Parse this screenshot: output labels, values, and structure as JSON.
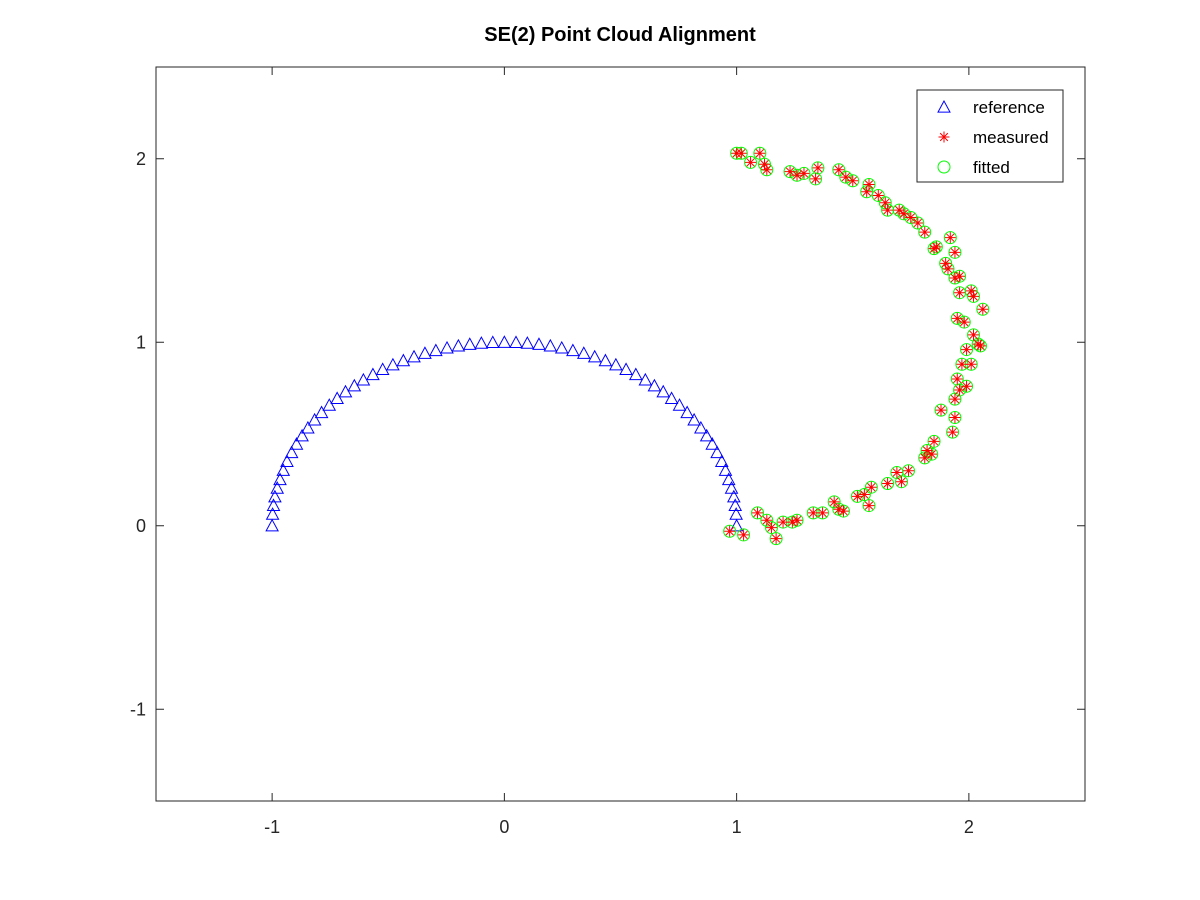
{
  "chart_data": {
    "type": "scatter",
    "title": "SE(2) Point Cloud Alignment",
    "xlabel": "",
    "ylabel": "",
    "xlim": [
      -1.5,
      2.5
    ],
    "ylim": [
      -1.5,
      2.5
    ],
    "xticks": [
      -1,
      0,
      1,
      2
    ],
    "yticks": [
      -1,
      0,
      1,
      2
    ],
    "xtick_labels": [
      "-1",
      "0",
      "1",
      "2"
    ],
    "ytick_labels": [
      "-1",
      "0",
      "1",
      "2"
    ],
    "grid": false,
    "legend_position": "top-right",
    "legend": [
      "reference",
      "measured",
      "fitted"
    ],
    "series": [
      {
        "name": "reference",
        "marker": "triangle",
        "color": "#0000ff",
        "points": [
          [
            -1.0,
            0.0
          ],
          [
            -0.998,
            0.063
          ],
          [
            -0.994,
            0.111
          ],
          [
            -0.988,
            0.158
          ],
          [
            -0.978,
            0.205
          ],
          [
            -0.966,
            0.252
          ],
          [
            -0.952,
            0.302
          ],
          [
            -0.936,
            0.351
          ],
          [
            -0.916,
            0.399
          ],
          [
            -0.895,
            0.445
          ],
          [
            -0.871,
            0.49
          ],
          [
            -0.846,
            0.533
          ],
          [
            -0.817,
            0.577
          ],
          [
            -0.787,
            0.617
          ],
          [
            -0.754,
            0.657
          ],
          [
            -0.72,
            0.694
          ],
          [
            -0.684,
            0.73
          ],
          [
            -0.646,
            0.763
          ],
          [
            -0.607,
            0.795
          ],
          [
            -0.566,
            0.824
          ],
          [
            -0.524,
            0.852
          ],
          [
            -0.48,
            0.877
          ],
          [
            -0.435,
            0.9
          ],
          [
            -0.389,
            0.921
          ],
          [
            -0.342,
            0.94
          ],
          [
            -0.295,
            0.955
          ],
          [
            -0.247,
            0.969
          ],
          [
            -0.198,
            0.98
          ],
          [
            -0.149,
            0.989
          ],
          [
            -0.099,
            0.995
          ],
          [
            -0.05,
            0.999
          ],
          [
            0.0,
            1.0
          ],
          [
            0.05,
            0.999
          ],
          [
            0.099,
            0.995
          ],
          [
            0.149,
            0.989
          ],
          [
            0.198,
            0.98
          ],
          [
            0.247,
            0.969
          ],
          [
            0.295,
            0.955
          ],
          [
            0.342,
            0.94
          ],
          [
            0.389,
            0.921
          ],
          [
            0.435,
            0.9
          ],
          [
            0.48,
            0.877
          ],
          [
            0.524,
            0.852
          ],
          [
            0.566,
            0.824
          ],
          [
            0.607,
            0.795
          ],
          [
            0.646,
            0.763
          ],
          [
            0.684,
            0.73
          ],
          [
            0.72,
            0.694
          ],
          [
            0.754,
            0.657
          ],
          [
            0.787,
            0.617
          ],
          [
            0.817,
            0.577
          ],
          [
            0.846,
            0.533
          ],
          [
            0.871,
            0.49
          ],
          [
            0.895,
            0.445
          ],
          [
            0.916,
            0.399
          ],
          [
            0.936,
            0.351
          ],
          [
            0.952,
            0.302
          ],
          [
            0.966,
            0.252
          ],
          [
            0.978,
            0.205
          ],
          [
            0.988,
            0.158
          ],
          [
            0.994,
            0.111
          ],
          [
            0.998,
            0.063
          ],
          [
            1.0,
            0.0
          ]
        ]
      },
      {
        "name": "measured",
        "marker": "asterisk",
        "color": "#ff0000",
        "points": [
          [
            0.97,
            -0.03
          ],
          [
            1.03,
            -0.05
          ],
          [
            1.09,
            0.07
          ],
          [
            1.13,
            0.03
          ],
          [
            1.15,
            -0.01
          ],
          [
            1.17,
            -0.07
          ],
          [
            1.2,
            0.02
          ],
          [
            1.24,
            0.02
          ],
          [
            1.26,
            0.03
          ],
          [
            1.33,
            0.07
          ],
          [
            1.37,
            0.07
          ],
          [
            1.42,
            0.13
          ],
          [
            1.44,
            0.09
          ],
          [
            1.46,
            0.08
          ],
          [
            1.52,
            0.16
          ],
          [
            1.55,
            0.17
          ],
          [
            1.57,
            0.11
          ],
          [
            1.58,
            0.21
          ],
          [
            1.65,
            0.23
          ],
          [
            1.69,
            0.29
          ],
          [
            1.71,
            0.24
          ],
          [
            1.74,
            0.3
          ],
          [
            1.81,
            0.37
          ],
          [
            1.82,
            0.41
          ],
          [
            1.84,
            0.39
          ],
          [
            1.85,
            0.46
          ],
          [
            1.88,
            0.63
          ],
          [
            1.93,
            0.51
          ],
          [
            1.94,
            0.59
          ],
          [
            1.94,
            0.69
          ],
          [
            1.95,
            0.8
          ],
          [
            1.96,
            0.74
          ],
          [
            1.97,
            0.88
          ],
          [
            1.99,
            0.76
          ],
          [
            1.99,
            0.96
          ],
          [
            2.01,
            0.88
          ],
          [
            2.02,
            1.04
          ],
          [
            2.05,
            0.98
          ],
          [
            2.04,
            0.99
          ],
          [
            1.95,
            1.13
          ],
          [
            1.98,
            1.11
          ],
          [
            2.06,
            1.18
          ],
          [
            1.96,
            1.27
          ],
          [
            2.01,
            1.28
          ],
          [
            2.02,
            1.25
          ],
          [
            1.94,
            1.35
          ],
          [
            1.96,
            1.36
          ],
          [
            1.91,
            1.4
          ],
          [
            1.94,
            1.49
          ],
          [
            1.9,
            1.43
          ],
          [
            1.92,
            1.57
          ],
          [
            1.85,
            1.51
          ],
          [
            1.86,
            1.52
          ],
          [
            1.81,
            1.6
          ],
          [
            1.78,
            1.65
          ],
          [
            1.75,
            1.68
          ],
          [
            1.72,
            1.7
          ],
          [
            1.7,
            1.72
          ],
          [
            1.65,
            1.72
          ],
          [
            1.64,
            1.76
          ],
          [
            1.61,
            1.8
          ],
          [
            1.56,
            1.82
          ],
          [
            1.57,
            1.86
          ],
          [
            1.5,
            1.88
          ],
          [
            1.47,
            1.9
          ],
          [
            1.44,
            1.94
          ],
          [
            1.35,
            1.95
          ],
          [
            1.34,
            1.89
          ],
          [
            1.29,
            1.92
          ],
          [
            1.26,
            1.91
          ],
          [
            1.23,
            1.93
          ],
          [
            1.13,
            1.94
          ],
          [
            1.12,
            1.97
          ],
          [
            1.1,
            2.03
          ],
          [
            1.06,
            1.98
          ],
          [
            1.02,
            2.03
          ],
          [
            1.0,
            2.03
          ]
        ]
      },
      {
        "name": "fitted",
        "marker": "circle",
        "color": "#00ff00",
        "points": [
          [
            0.97,
            -0.03
          ],
          [
            1.03,
            -0.05
          ],
          [
            1.09,
            0.07
          ],
          [
            1.13,
            0.03
          ],
          [
            1.15,
            -0.01
          ],
          [
            1.17,
            -0.07
          ],
          [
            1.2,
            0.02
          ],
          [
            1.24,
            0.02
          ],
          [
            1.26,
            0.03
          ],
          [
            1.33,
            0.07
          ],
          [
            1.37,
            0.07
          ],
          [
            1.42,
            0.13
          ],
          [
            1.44,
            0.09
          ],
          [
            1.46,
            0.08
          ],
          [
            1.52,
            0.16
          ],
          [
            1.55,
            0.17
          ],
          [
            1.57,
            0.11
          ],
          [
            1.58,
            0.21
          ],
          [
            1.65,
            0.23
          ],
          [
            1.69,
            0.29
          ],
          [
            1.71,
            0.24
          ],
          [
            1.74,
            0.3
          ],
          [
            1.81,
            0.37
          ],
          [
            1.82,
            0.41
          ],
          [
            1.84,
            0.39
          ],
          [
            1.85,
            0.46
          ],
          [
            1.88,
            0.63
          ],
          [
            1.93,
            0.51
          ],
          [
            1.94,
            0.59
          ],
          [
            1.94,
            0.69
          ],
          [
            1.95,
            0.8
          ],
          [
            1.96,
            0.74
          ],
          [
            1.97,
            0.88
          ],
          [
            1.99,
            0.76
          ],
          [
            1.99,
            0.96
          ],
          [
            2.01,
            0.88
          ],
          [
            2.02,
            1.04
          ],
          [
            2.05,
            0.98
          ],
          [
            2.04,
            0.99
          ],
          [
            1.95,
            1.13
          ],
          [
            1.98,
            1.11
          ],
          [
            2.06,
            1.18
          ],
          [
            1.96,
            1.27
          ],
          [
            2.01,
            1.28
          ],
          [
            2.02,
            1.25
          ],
          [
            1.94,
            1.35
          ],
          [
            1.96,
            1.36
          ],
          [
            1.91,
            1.4
          ],
          [
            1.94,
            1.49
          ],
          [
            1.9,
            1.43
          ],
          [
            1.92,
            1.57
          ],
          [
            1.85,
            1.51
          ],
          [
            1.86,
            1.52
          ],
          [
            1.81,
            1.6
          ],
          [
            1.78,
            1.65
          ],
          [
            1.75,
            1.68
          ],
          [
            1.72,
            1.7
          ],
          [
            1.7,
            1.72
          ],
          [
            1.65,
            1.72
          ],
          [
            1.64,
            1.76
          ],
          [
            1.61,
            1.8
          ],
          [
            1.56,
            1.82
          ],
          [
            1.57,
            1.86
          ],
          [
            1.5,
            1.88
          ],
          [
            1.47,
            1.9
          ],
          [
            1.44,
            1.94
          ],
          [
            1.35,
            1.95
          ],
          [
            1.34,
            1.89
          ],
          [
            1.29,
            1.92
          ],
          [
            1.26,
            1.91
          ],
          [
            1.23,
            1.93
          ],
          [
            1.13,
            1.94
          ],
          [
            1.12,
            1.97
          ],
          [
            1.1,
            2.03
          ],
          [
            1.06,
            1.98
          ],
          [
            1.02,
            2.03
          ],
          [
            1.0,
            2.03
          ]
        ]
      }
    ]
  }
}
